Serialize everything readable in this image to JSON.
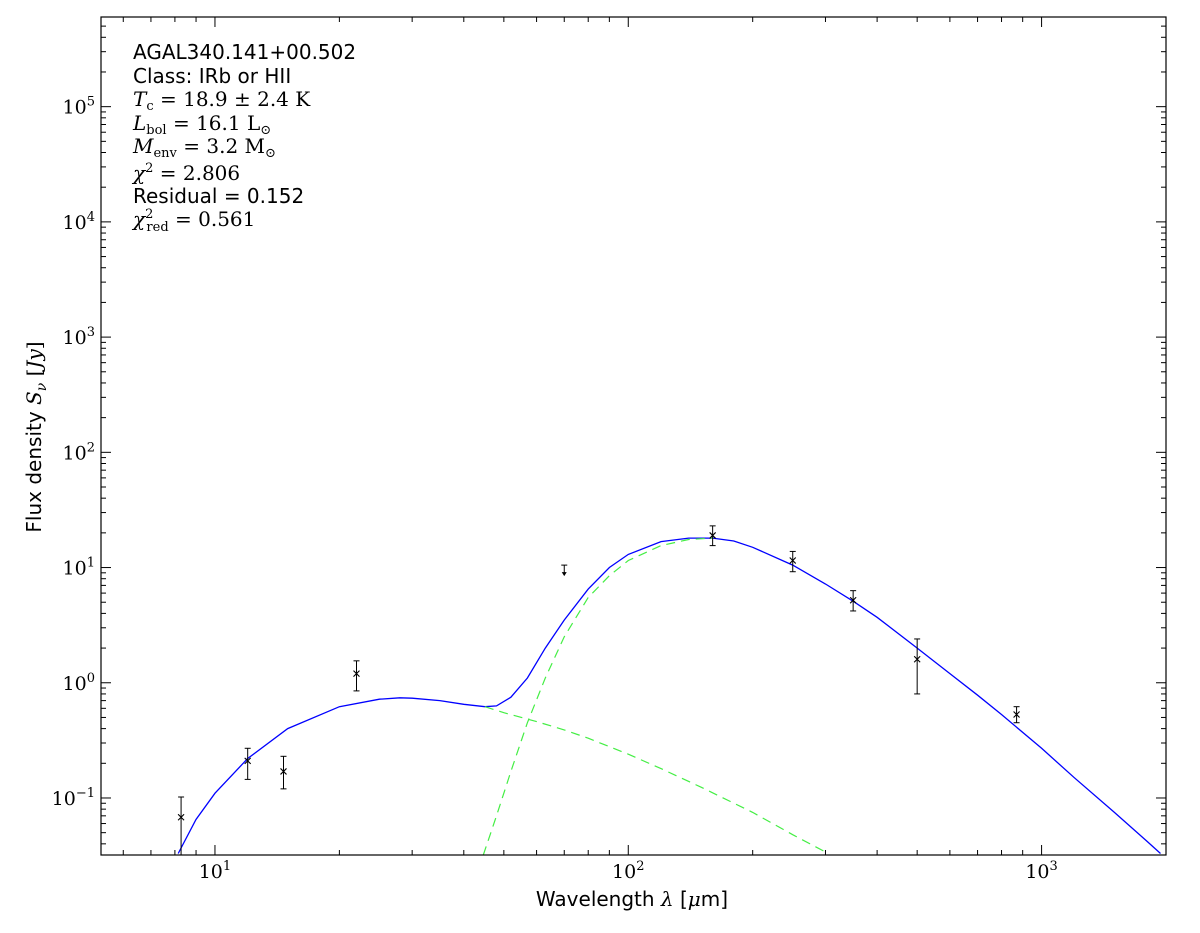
{
  "chart_data": {
    "type": "scatter",
    "title": "",
    "xlabel": "Wavelength λ [μm]",
    "ylabel": "Flux density S_ν [Jy]",
    "x_scale": "log",
    "y_scale": "log",
    "xlim": [
      5.3,
      2000
    ],
    "ylim": [
      0.032,
      600000
    ],
    "grid": false,
    "x_ticks": [
      {
        "value": 10,
        "mantissa": "10",
        "exp": "1"
      },
      {
        "value": 100,
        "mantissa": "10",
        "exp": "2"
      },
      {
        "value": 1000,
        "mantissa": "10",
        "exp": "3"
      }
    ],
    "y_ticks": [
      {
        "value": 0.1,
        "mantissa": "10",
        "exp": "−1"
      },
      {
        "value": 1,
        "mantissa": "10",
        "exp": "0"
      },
      {
        "value": 10,
        "mantissa": "10",
        "exp": "1"
      },
      {
        "value": 100,
        "mantissa": "10",
        "exp": "2"
      },
      {
        "value": 1000,
        "mantissa": "10",
        "exp": "3"
      },
      {
        "value": 10000,
        "mantissa": "10",
        "exp": "4"
      },
      {
        "value": 100000,
        "mantissa": "10",
        "exp": "5"
      }
    ],
    "annotations": {
      "source": "AGAL340.141+00.502",
      "class_line": "Class: IRb or HII",
      "tc": "T_c = 18.9 ± 2.4 K",
      "lbol": "L_bol = 16.1 L_⊙",
      "menv": "M_env = 3.2 M_⊙",
      "chi2": "χ² = 2.806",
      "residual": "Residual = 0.152",
      "chi2red": "χ²_red = 0.561"
    },
    "colors": {
      "total_fit": "#0000ff",
      "components": "#44ee44",
      "points": "#000000"
    },
    "points": [
      {
        "x": 8.28,
        "y": 0.068,
        "err_low": 0.068,
        "err_high": 0.034
      },
      {
        "x": 12.0,
        "y": 0.21,
        "err_low": 0.065,
        "err_high": 0.06
      },
      {
        "x": 14.65,
        "y": 0.17,
        "err_low": 0.05,
        "err_high": 0.06
      },
      {
        "x": 22.0,
        "y": 1.2,
        "err_low": 0.35,
        "err_high": 0.35
      },
      {
        "x": 160,
        "y": 19.0,
        "err_low": 3.5,
        "err_high": 4.0
      },
      {
        "x": 250,
        "y": 11.5,
        "err_low": 2.3,
        "err_high": 2.3
      },
      {
        "x": 350,
        "y": 5.2,
        "err_low": 1.0,
        "err_high": 1.1
      },
      {
        "x": 500,
        "y": 1.6,
        "err_low": 0.8,
        "err_high": 0.8
      },
      {
        "x": 870,
        "y": 0.53,
        "err_low": 0.08,
        "err_high": 0.09
      }
    ],
    "upper_limits": [
      {
        "x": 70,
        "y": 10.5
      }
    ],
    "series": [
      {
        "role": "total_fit",
        "style": "solid",
        "x": [
          8.15,
          9,
          10,
          12,
          15,
          20,
          25,
          28,
          30,
          35,
          40,
          45,
          48,
          52,
          57,
          63,
          70,
          80,
          90,
          100,
          120,
          140,
          160,
          180,
          200,
          250,
          300,
          350,
          400,
          500,
          600,
          700,
          800,
          1000,
          1200,
          1500,
          1800,
          1940
        ],
        "y": [
          0.033,
          0.065,
          0.11,
          0.22,
          0.4,
          0.62,
          0.72,
          0.74,
          0.735,
          0.7,
          0.65,
          0.62,
          0.63,
          0.75,
          1.1,
          2.0,
          3.5,
          6.5,
          10.0,
          13.0,
          16.8,
          18.0,
          18.0,
          17.0,
          15.0,
          10.5,
          7.2,
          5.1,
          3.7,
          2.0,
          1.2,
          0.78,
          0.53,
          0.27,
          0.15,
          0.075,
          0.042,
          0.033
        ]
      },
      {
        "role": "warm_component",
        "style": "dashed",
        "x": [
          45,
          50,
          60,
          70,
          80,
          100,
          120,
          150,
          200,
          250,
          300
        ],
        "y": [
          0.62,
          0.55,
          0.46,
          0.39,
          0.33,
          0.24,
          0.18,
          0.124,
          0.075,
          0.048,
          0.034
        ]
      },
      {
        "role": "cold_component",
        "style": "dashed",
        "x": [
          44.6,
          48,
          52,
          57,
          63,
          70,
          80,
          90,
          100,
          120,
          140,
          160
        ],
        "y": [
          0.032,
          0.07,
          0.17,
          0.45,
          1.1,
          2.5,
          5.5,
          8.5,
          11.5,
          15.5,
          17.5,
          18.0
        ]
      }
    ]
  }
}
